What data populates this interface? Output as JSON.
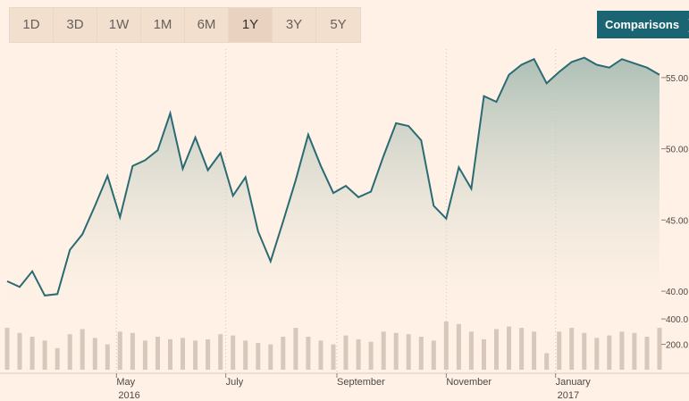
{
  "toolbar": {
    "ranges": [
      "1D",
      "3D",
      "1W",
      "1M",
      "6M",
      "1Y",
      "3Y",
      "5Y"
    ],
    "active_range": "1Y",
    "comparisons_label": "Comparisons",
    "comparisons_icon": "chevron-right-icon"
  },
  "colors": {
    "background": "#fff1e5",
    "price_line": "#2a6b73",
    "area_top": "#a9bdb4",
    "volume_bar": "#d7c8bb",
    "comparisons_button": "#1b6573"
  },
  "chart_data": [
    {
      "type": "line",
      "title": "",
      "area_fill": true,
      "grid": "vertical dotted at month ticks",
      "y_axis_side": "right",
      "ylim": [
        38.5,
        57
      ],
      "y_ticks": [
        "40.00",
        "45.00",
        "50.00",
        "55.00"
      ],
      "x_ticks": [
        {
          "label": "May",
          "sub": "2016"
        },
        {
          "label": "July",
          "sub": ""
        },
        {
          "label": "September",
          "sub": ""
        },
        {
          "label": "November",
          "sub": ""
        },
        {
          "label": "January",
          "sub": "2017"
        }
      ],
      "x": [
        "2016-03-01",
        "2016-03-08",
        "2016-03-15",
        "2016-03-22",
        "2016-03-29",
        "2016-04-05",
        "2016-04-12",
        "2016-04-19",
        "2016-04-26",
        "2016-05-03",
        "2016-05-10",
        "2016-05-17",
        "2016-05-24",
        "2016-05-31",
        "2016-06-07",
        "2016-06-14",
        "2016-06-21",
        "2016-06-28",
        "2016-07-05",
        "2016-07-12",
        "2016-07-19",
        "2016-07-26",
        "2016-08-02",
        "2016-08-09",
        "2016-08-16",
        "2016-08-23",
        "2016-08-30",
        "2016-09-06",
        "2016-09-13",
        "2016-09-20",
        "2016-09-27",
        "2016-10-04",
        "2016-10-11",
        "2016-10-18",
        "2016-10-25",
        "2016-11-01",
        "2016-11-08",
        "2016-11-15",
        "2016-11-22",
        "2016-11-29",
        "2016-12-06",
        "2016-12-13",
        "2016-12-20",
        "2016-12-27",
        "2017-01-03",
        "2017-01-10",
        "2017-01-17",
        "2017-01-24",
        "2017-01-31",
        "2017-02-07",
        "2017-02-14",
        "2017-02-21",
        "2017-02-28"
      ],
      "values": [
        40.7,
        40.3,
        41.4,
        39.7,
        39.8,
        42.9,
        44.0,
        46.0,
        48.1,
        45.2,
        48.8,
        49.2,
        49.9,
        52.5,
        48.6,
        50.8,
        48.5,
        49.7,
        46.7,
        48.0,
        44.2,
        42.1,
        44.9,
        47.8,
        51.0,
        48.8,
        46.9,
        47.4,
        46.6,
        47.0,
        49.5,
        51.8,
        51.6,
        50.6,
        46.0,
        45.1,
        48.7,
        47.2,
        53.7,
        53.3,
        55.2,
        55.9,
        56.3,
        54.6,
        55.4,
        56.1,
        56.4,
        55.9,
        55.7,
        56.3,
        56.0,
        55.7,
        55.2
      ],
      "y_unit": "price"
    },
    {
      "type": "bar",
      "title": "volume",
      "y_ticks": [
        "200.0",
        "400.0"
      ],
      "ylim": [
        0,
        450
      ],
      "x": [
        "2016-03-01",
        "2016-03-08",
        "2016-03-15",
        "2016-03-22",
        "2016-03-29",
        "2016-04-05",
        "2016-04-12",
        "2016-04-19",
        "2016-04-26",
        "2016-05-03",
        "2016-05-10",
        "2016-05-17",
        "2016-05-24",
        "2016-05-31",
        "2016-06-07",
        "2016-06-14",
        "2016-06-21",
        "2016-06-28",
        "2016-07-05",
        "2016-07-12",
        "2016-07-19",
        "2016-07-26",
        "2016-08-02",
        "2016-08-09",
        "2016-08-16",
        "2016-08-23",
        "2016-08-30",
        "2016-09-06",
        "2016-09-13",
        "2016-09-20",
        "2016-09-27",
        "2016-10-04",
        "2016-10-11",
        "2016-10-18",
        "2016-10-25",
        "2016-11-01",
        "2016-11-08",
        "2016-11-15",
        "2016-11-22",
        "2016-11-29",
        "2016-12-06",
        "2016-12-13",
        "2016-12-20",
        "2016-12-27",
        "2017-01-03",
        "2017-01-10",
        "2017-01-17",
        "2017-01-24",
        "2017-01-31",
        "2017-02-07",
        "2017-02-14",
        "2017-02-21",
        "2017-02-28"
      ],
      "values": [
        330,
        290,
        260,
        230,
        170,
        280,
        320,
        250,
        200,
        300,
        290,
        230,
        260,
        240,
        250,
        230,
        240,
        280,
        270,
        230,
        210,
        200,
        260,
        330,
        260,
        230,
        200,
        270,
        240,
        220,
        300,
        290,
        280,
        260,
        230,
        380,
        360,
        300,
        240,
        320,
        340,
        330,
        300,
        130,
        300,
        330,
        290,
        250,
        270,
        300,
        290,
        260,
        330
      ]
    }
  ]
}
